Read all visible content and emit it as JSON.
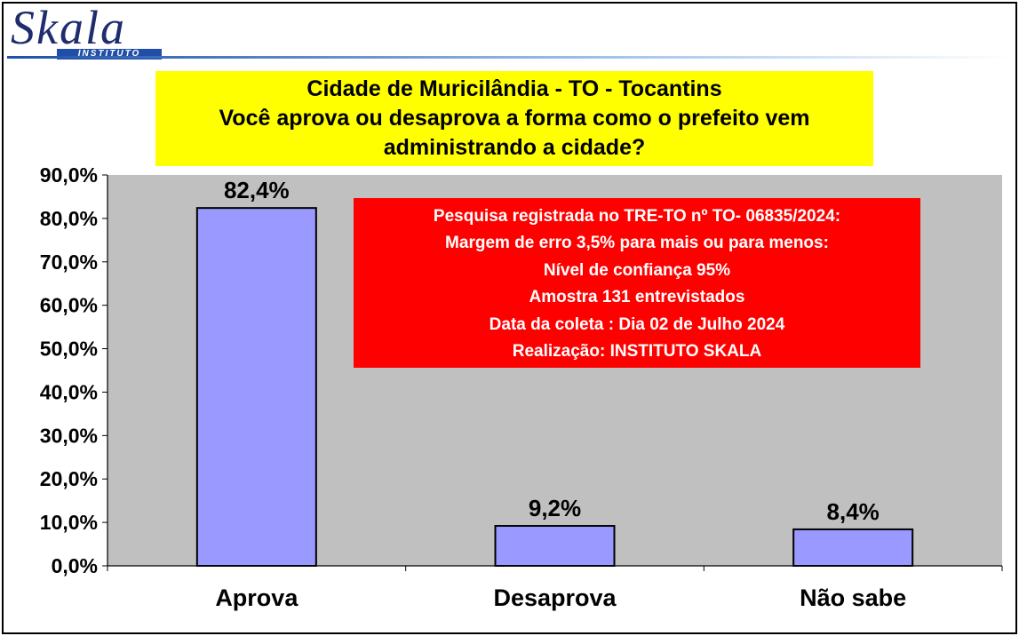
{
  "logo": {
    "word": "Skala",
    "sub": "INSTITUTO"
  },
  "title": {
    "line1": "Cidade de Muricilândia - TO - Tocantins",
    "line2": "Você aprova ou desaprova a forma como o prefeito vem",
    "line3": "administrando a cidade?"
  },
  "info": {
    "lines": [
      "Pesquisa registrada no TRE-TO nº TO- 06835/2024:",
      "Margem de erro 3,5% para mais ou para menos:",
      "Nível de confiança 95%",
      "Amostra 131 entrevistados",
      "Data da coleta : Dia 02 de Julho 2024",
      "Realização: INSTITUTO SKALA"
    ]
  },
  "colors": {
    "bar": "#9999ff",
    "plot_bg": "#c0c0c0",
    "title_bg": "#ffff00",
    "info_bg": "#ff0000"
  },
  "chart_data": {
    "type": "bar",
    "categories": [
      "Aprova",
      "Desaprova",
      "Não sabe"
    ],
    "values": [
      82.4,
      9.2,
      8.4
    ],
    "value_labels": [
      "82,4%",
      "9,2%",
      "8,4%"
    ],
    "ylim": [
      0,
      90
    ],
    "yticks": [
      0,
      10,
      20,
      30,
      40,
      50,
      60,
      70,
      80,
      90
    ],
    "ytick_labels": [
      "0,0%",
      "10,0%",
      "20,0%",
      "30,0%",
      "40,0%",
      "50,0%",
      "60,0%",
      "70,0%",
      "80,0%",
      "90,0%"
    ],
    "grid": false,
    "legend": "none"
  }
}
